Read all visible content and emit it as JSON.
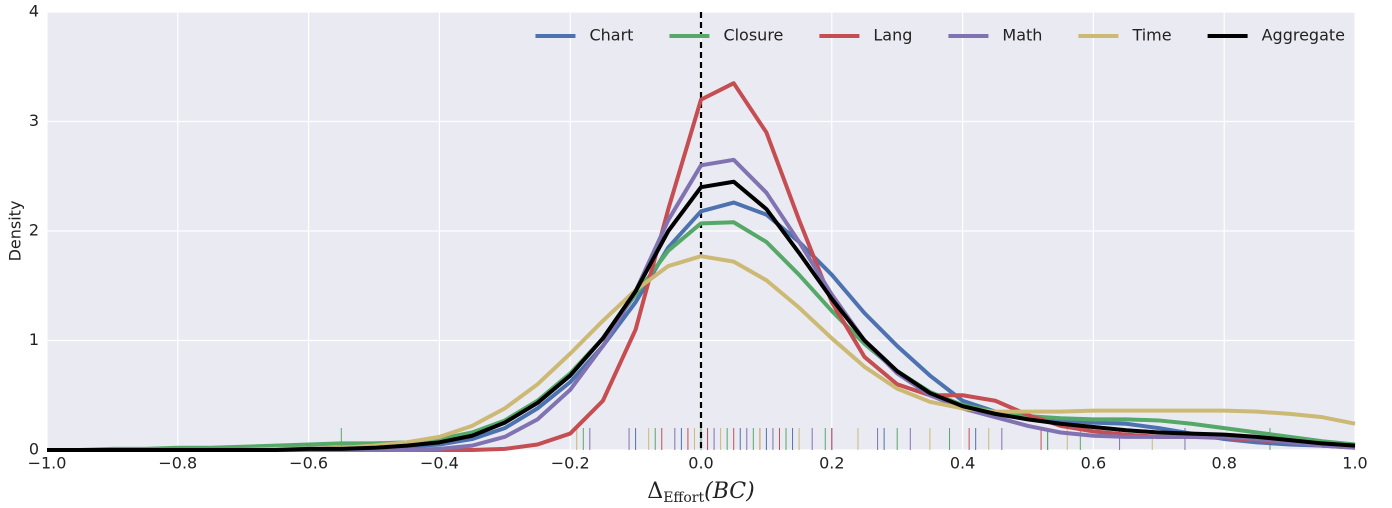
{
  "chart_data": {
    "type": "line",
    "xlabel": {
      "symbol": "Δ",
      "subscript": "Effort",
      "rest": "(BC)"
    },
    "ylabel": "Density",
    "x": [
      -1.0,
      -0.95,
      -0.9,
      -0.85,
      -0.8,
      -0.75,
      -0.7,
      -0.65,
      -0.6,
      -0.55,
      -0.5,
      -0.45,
      -0.4,
      -0.35,
      -0.3,
      -0.25,
      -0.2,
      -0.15,
      -0.1,
      -0.05,
      0,
      0.05,
      0.1,
      0.15,
      0.2,
      0.25,
      0.3,
      0.35,
      0.4,
      0.45,
      0.5,
      0.55,
      0.6,
      0.65,
      0.7,
      0.75,
      0.8,
      0.85,
      0.9,
      0.95,
      1.0
    ],
    "series": [
      {
        "name": "Chart",
        "color": "#4c72b0",
        "values": [
          0,
          0,
          0,
          0,
          0,
          0,
          0.01,
          0.01,
          0.01,
          0.02,
          0.02,
          0.03,
          0.05,
          0.1,
          0.2,
          0.38,
          0.62,
          0.95,
          1.35,
          1.85,
          2.18,
          2.26,
          2.15,
          1.9,
          1.6,
          1.25,
          0.95,
          0.68,
          0.45,
          0.35,
          0.3,
          0.27,
          0.25,
          0.24,
          0.2,
          0.15,
          0.1,
          0.07,
          0.05,
          0.04,
          0.03
        ],
        "rug": [
          -0.1,
          -0.03,
          0.01,
          0.06,
          0.1,
          0.14,
          0.2,
          0.28,
          0.42,
          0.53
        ]
      },
      {
        "name": "Closure",
        "color": "#55a868",
        "values": [
          0,
          0,
          0.01,
          0.01,
          0.02,
          0.02,
          0.03,
          0.04,
          0.05,
          0.06,
          0.06,
          0.07,
          0.1,
          0.16,
          0.27,
          0.45,
          0.7,
          1.02,
          1.42,
          1.82,
          2.07,
          2.08,
          1.9,
          1.6,
          1.27,
          0.97,
          0.72,
          0.53,
          0.41,
          0.35,
          0.31,
          0.29,
          0.28,
          0.28,
          0.27,
          0.24,
          0.2,
          0.16,
          0.12,
          0.08,
          0.05
        ],
        "rug": [
          -0.55,
          -0.18,
          -0.07,
          0.0,
          0.04,
          0.08,
          0.13,
          0.19,
          0.3,
          0.38,
          0.53,
          0.58,
          0.87
        ]
      },
      {
        "name": "Lang",
        "color": "#c44e52",
        "values": [
          0,
          0,
          0,
          0,
          0,
          0,
          0,
          0,
          0,
          0,
          0,
          0,
          0,
          0,
          0.01,
          0.05,
          0.15,
          0.45,
          1.1,
          2.2,
          3.2,
          3.35,
          2.9,
          2.1,
          1.35,
          0.85,
          0.6,
          0.5,
          0.5,
          0.45,
          0.32,
          0.22,
          0.17,
          0.14,
          0.12,
          0.12,
          0.11,
          0.09,
          0.07,
          0.04,
          0.02
        ],
        "rug": [
          -0.06,
          -0.02,
          0.01,
          0.05,
          0.09,
          0.12,
          0.2,
          0.41,
          0.52
        ]
      },
      {
        "name": "Math",
        "color": "#8172b2",
        "values": [
          0,
          0,
          0,
          0,
          0,
          0,
          0,
          0,
          0,
          0,
          0,
          0,
          0.01,
          0.04,
          0.12,
          0.28,
          0.55,
          0.95,
          1.45,
          2.1,
          2.6,
          2.65,
          2.35,
          1.9,
          1.42,
          1.0,
          0.7,
          0.5,
          0.38,
          0.3,
          0.22,
          0.16,
          0.13,
          0.12,
          0.12,
          0.12,
          0.12,
          0.1,
          0.07,
          0.04,
          0.02
        ],
        "rug": [
          -0.17,
          -0.11,
          -0.04,
          0.02,
          0.07,
          0.11,
          0.17,
          0.27,
          0.32,
          0.46,
          0.64,
          0.74
        ]
      },
      {
        "name": "Time",
        "color": "#ccb974",
        "values": [
          0,
          0,
          0,
          0,
          0,
          0,
          0,
          0.01,
          0.01,
          0.02,
          0.04,
          0.07,
          0.12,
          0.22,
          0.38,
          0.6,
          0.88,
          1.18,
          1.46,
          1.68,
          1.77,
          1.72,
          1.55,
          1.3,
          1.02,
          0.76,
          0.56,
          0.44,
          0.38,
          0.35,
          0.35,
          0.35,
          0.36,
          0.36,
          0.36,
          0.36,
          0.36,
          0.35,
          0.33,
          0.3,
          0.24
        ],
        "rug": [
          -0.19,
          -0.08,
          -0.01,
          0.03,
          0.09,
          0.15,
          0.24,
          0.35,
          0.44,
          0.56,
          0.69
        ]
      },
      {
        "name": "Aggregate",
        "color": "#000000",
        "values": [
          0,
          0,
          0,
          0,
          0,
          0,
          0,
          0,
          0.01,
          0.01,
          0.02,
          0.04,
          0.07,
          0.13,
          0.25,
          0.43,
          0.68,
          1.02,
          1.45,
          2.0,
          2.4,
          2.45,
          2.2,
          1.8,
          1.38,
          1.0,
          0.72,
          0.52,
          0.4,
          0.33,
          0.28,
          0.24,
          0.21,
          0.18,
          0.16,
          0.15,
          0.14,
          0.12,
          0.09,
          0.06,
          0.04
        ]
      }
    ],
    "vline": 0,
    "xlim": [
      -1,
      1
    ],
    "ylim": [
      0,
      4
    ],
    "xticks": [
      {
        "value": -1,
        "label": "−1.0"
      },
      {
        "value": -0.8,
        "label": "−0.8"
      },
      {
        "value": -0.6,
        "label": "−0.6"
      },
      {
        "value": -0.4,
        "label": "−0.4"
      },
      {
        "value": -0.2,
        "label": "−0.2"
      },
      {
        "value": 0,
        "label": "0.0"
      },
      {
        "value": 0.2,
        "label": "0.2"
      },
      {
        "value": 0.4,
        "label": "0.4"
      },
      {
        "value": 0.6,
        "label": "0.6"
      },
      {
        "value": 0.8,
        "label": "0.8"
      },
      {
        "value": 1,
        "label": "1.0"
      }
    ],
    "yticks": [
      0,
      1,
      2,
      3,
      4
    ],
    "grid": true,
    "legend": "upper right"
  }
}
